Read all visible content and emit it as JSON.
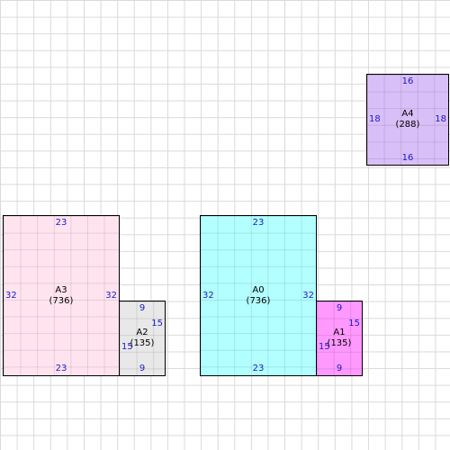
{
  "colors": {
    "grid": "#d9d9d9",
    "dimension_text": "#1a1acc",
    "border": "#000000"
  },
  "rectangles": [
    {
      "id": "A0",
      "area": "(736)",
      "top": "23",
      "bottom": "23",
      "left": "32",
      "right": "32",
      "fill": "#b3ffff"
    },
    {
      "id": "A1",
      "area": "(135)",
      "top": "9",
      "bottom": "9",
      "left": "15",
      "right": "15",
      "fill": "#ff99ff"
    },
    {
      "id": "A2",
      "area": "(135)",
      "top": "9",
      "bottom": "9",
      "left": "15",
      "right": "15",
      "fill": "#e8e8e8"
    },
    {
      "id": "A3",
      "area": "(736)",
      "top": "23",
      "bottom": "23",
      "left": "32",
      "right": "32",
      "fill": "#ffe4ef"
    },
    {
      "id": "A4",
      "area": "(288)",
      "top": "16",
      "bottom": "16",
      "left": "18",
      "right": "18",
      "fill": "#d9bff7"
    }
  ]
}
